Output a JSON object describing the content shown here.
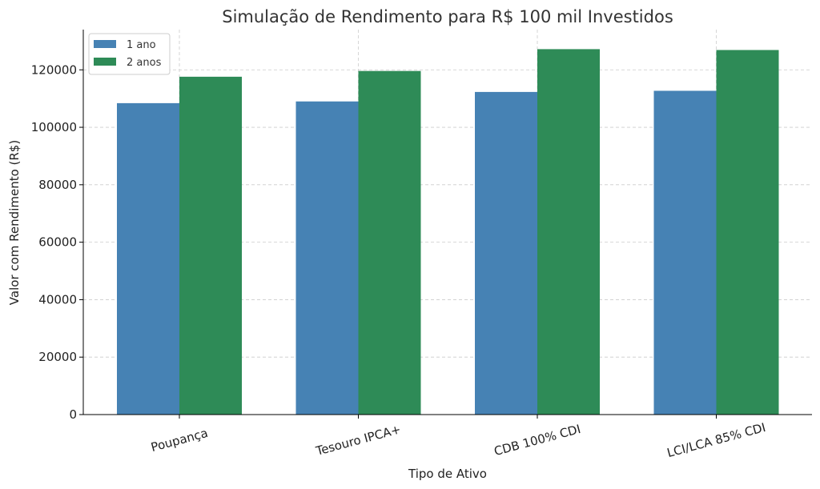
{
  "chart_data": {
    "type": "bar",
    "title": "Simulação de Rendimento para R$ 100 mil Investidos",
    "xlabel": "Tipo de Ativo",
    "ylabel": "Valor com Rendimento (R$)",
    "categories": [
      "Poupança",
      "Tesouro IPCA+",
      "CDB 100% CDI",
      "LCI/LCA 85% CDI"
    ],
    "series": [
      {
        "name": "1 ano",
        "color": "#4682b4",
        "values": [
          108400,
          109000,
          112300,
          112700
        ]
      },
      {
        "name": "2 anos",
        "color": "#2e8b57",
        "values": [
          117600,
          119600,
          127200,
          126900
        ]
      }
    ],
    "yticks": [
      0,
      20000,
      40000,
      60000,
      80000,
      100000,
      120000
    ],
    "ylim": [
      0,
      134000
    ],
    "grid": true,
    "legend_position": "top-left"
  }
}
